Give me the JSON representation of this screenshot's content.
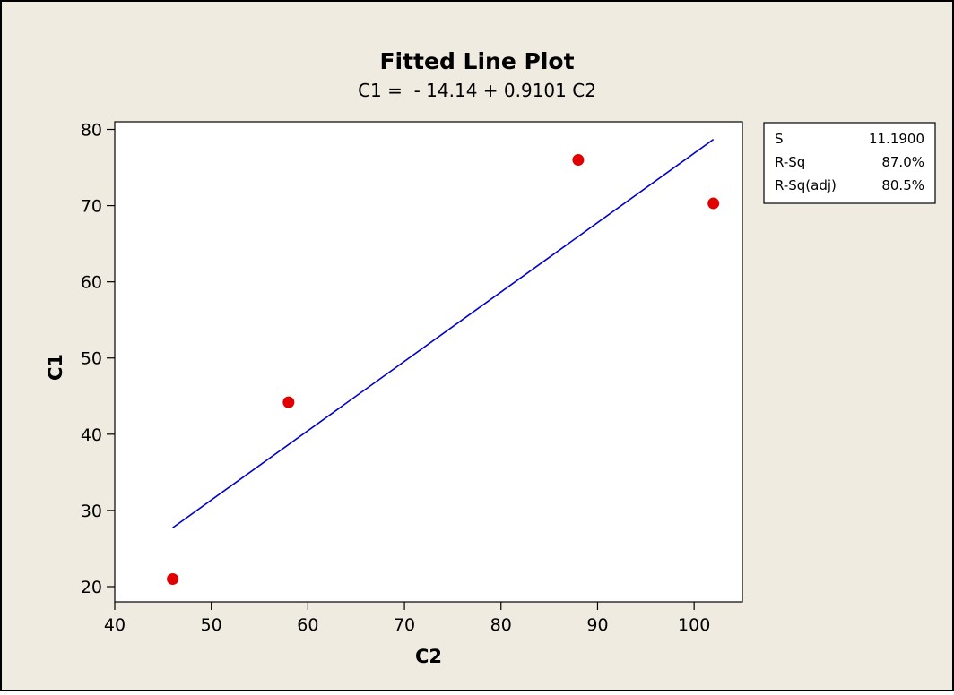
{
  "chart_data": {
    "type": "scatter",
    "title": "Fitted Line Plot",
    "subtitle": "C1 =  - 14.14 + 0.9101 C2",
    "xlabel": "C2",
    "ylabel": "C1",
    "xlim": [
      40,
      105
    ],
    "ylim": [
      18,
      81
    ],
    "x_ticks": [
      40,
      50,
      60,
      70,
      80,
      90,
      100
    ],
    "y_ticks": [
      20,
      30,
      40,
      50,
      60,
      70,
      80
    ],
    "points": [
      {
        "x": 46,
        "y": 21
      },
      {
        "x": 58,
        "y": 44.2
      },
      {
        "x": 88,
        "y": 76
      },
      {
        "x": 102,
        "y": 70.3
      }
    ],
    "fit": {
      "intercept": -14.14,
      "slope": 0.9101,
      "x_range": [
        46,
        102
      ]
    },
    "point_color": "#e00000",
    "line_color": "#0000cc",
    "stats": [
      {
        "label": "S",
        "value": "11.1900"
      },
      {
        "label": "R-Sq",
        "value": "87.0%"
      },
      {
        "label": "R-Sq(adj)",
        "value": "80.5%"
      }
    ]
  }
}
